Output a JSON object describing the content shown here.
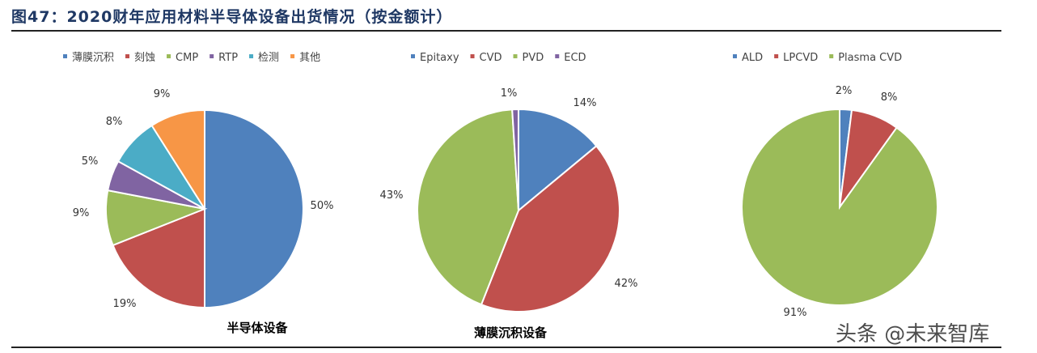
{
  "figure_title": "图47：2020财年应用材料半导体设备出货情况（按金额计）",
  "watermark": "头条 @未来智库",
  "chart_data": [
    {
      "type": "pie",
      "title": "半导体设备",
      "categories": [
        "薄膜沉积",
        "刻蚀",
        "CMP",
        "RTP",
        "检测",
        "其他"
      ],
      "values": [
        50,
        19,
        9,
        5,
        8,
        9
      ],
      "labels": [
        "50%",
        "19%",
        "9%",
        "5%",
        "8%",
        "9%"
      ],
      "colors": [
        "#4f81bd",
        "#c0504d",
        "#9bbb59",
        "#8064a2",
        "#4bacc6",
        "#f79646"
      ],
      "legend": "top"
    },
    {
      "type": "pie",
      "title": "薄膜沉积设备",
      "categories": [
        "Epitaxy",
        "CVD",
        "PVD",
        "ECD"
      ],
      "values": [
        14,
        42,
        43,
        1
      ],
      "labels": [
        "14%",
        "42%",
        "43%",
        "1%"
      ],
      "colors": [
        "#4f81bd",
        "#c0504d",
        "#9bbb59",
        "#8064a2"
      ],
      "legend": "top"
    },
    {
      "type": "pie",
      "title": "",
      "categories": [
        "ALD",
        "LPCVD",
        "Plasma CVD"
      ],
      "values": [
        2,
        8,
        91
      ],
      "labels": [
        "2%",
        "8%",
        "91%"
      ],
      "colors": [
        "#4f81bd",
        "#c0504d",
        "#9bbb59"
      ],
      "legend": "top"
    }
  ]
}
